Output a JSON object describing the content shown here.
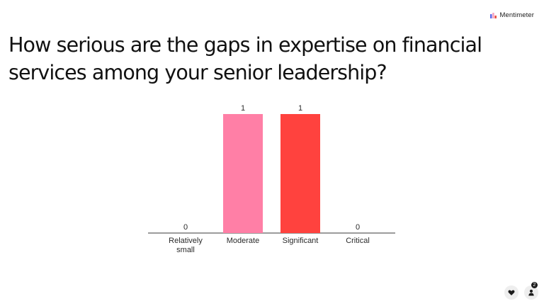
{
  "brand": {
    "name": "Mentimeter",
    "icon": "mentimeter-logo",
    "logo_colors": [
      "#5d6bea",
      "#f5a3c2",
      "#e64a3b"
    ]
  },
  "question": "How serious are the gaps in expertise on financial services among your senior leadership?",
  "chart_data": {
    "type": "bar",
    "categories": [
      "Relatively small",
      "Moderate",
      "Significant",
      "Critical"
    ],
    "category_label_lines": [
      [
        "Relatively",
        "small"
      ],
      [
        "Moderate"
      ],
      [
        "Significant"
      ],
      [
        "Critical"
      ]
    ],
    "values": [
      0,
      1,
      1,
      0
    ],
    "colors": [
      "#5d6bea",
      "#ff7fa6",
      "#ff423e",
      "#e0e0e0"
    ],
    "ylim": [
      0,
      1
    ],
    "grid": false,
    "legend": "none"
  },
  "footer": {
    "reaction_icon": "heart-icon",
    "participants_icon": "person-icon",
    "participants_count": "2"
  }
}
